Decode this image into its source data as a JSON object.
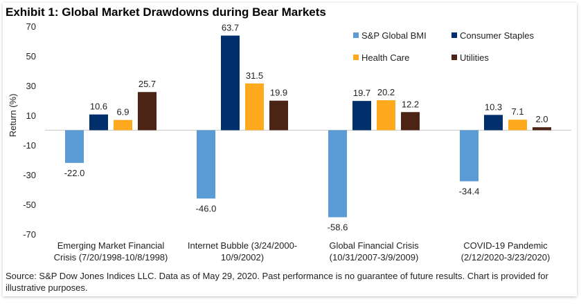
{
  "chart_data": {
    "type": "bar",
    "title": "Exhibit 1: Global Market Drawdowns during Bear Markets",
    "ylabel": "Return (%)",
    "xlabel": "",
    "ylim": [
      -70,
      70
    ],
    "yticks": [
      70,
      50,
      30,
      10,
      -10,
      -30,
      -50,
      -70
    ],
    "grid": false,
    "legend_placement": "top-right",
    "categories": [
      [
        "Emerging Market Financial",
        "Crisis (7/20/1998-10/8/1998)"
      ],
      [
        "Internet Bubble (3/24/2000-",
        "10/9/2002)"
      ],
      [
        "Global Financial Crisis",
        "(10/31/2007-3/9/2009)"
      ],
      [
        "COVID-19 Pandemic",
        "(2/12/2020-3/23/2020)"
      ]
    ],
    "series": [
      {
        "name": "S&P Global BMI",
        "color": "#5B9BD5",
        "values": [
          -22.0,
          -46.0,
          -58.6,
          -34.4
        ]
      },
      {
        "name": "Consumer Staples",
        "color": "#002F6C",
        "values": [
          10.6,
          63.7,
          19.7,
          10.3
        ]
      },
      {
        "name": "Health Care",
        "color": "#FFA91F",
        "values": [
          6.9,
          31.5,
          20.2,
          7.1
        ]
      },
      {
        "name": "Utilities",
        "color": "#4B2415",
        "values": [
          25.7,
          19.9,
          12.2,
          2.0
        ]
      }
    ]
  },
  "source": "Source: S&P Dow Jones Indices LLC. Data as of May 29, 2020. Past performance is no guarantee of future results. Chart is provided for illustrative purposes."
}
